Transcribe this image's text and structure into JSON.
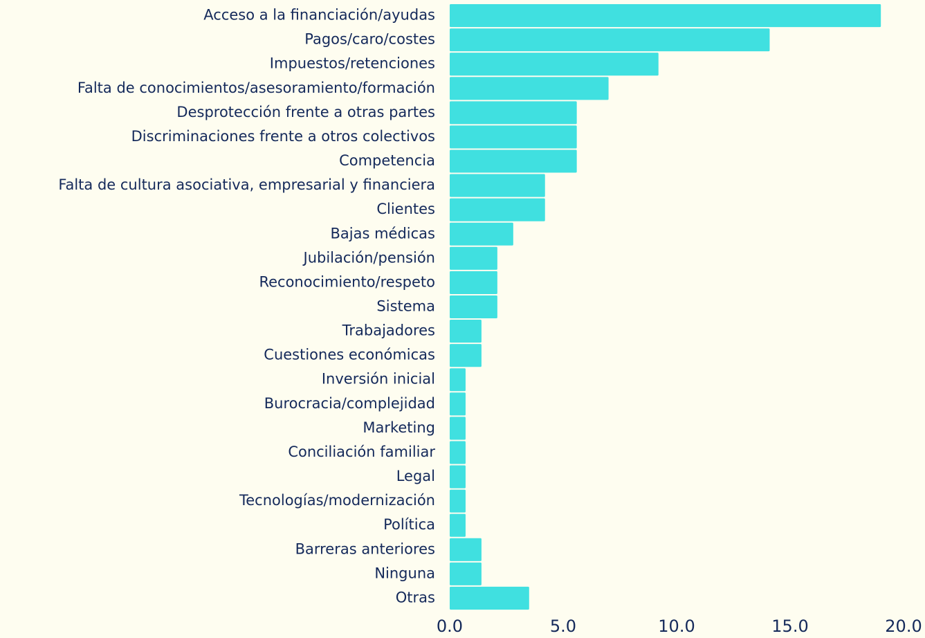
{
  "chart_data": {
    "type": "bar",
    "orientation": "horizontal",
    "categories": [
      "Acceso a la financiación/ayudas",
      "Pagos/caro/costes",
      "Impuestos/retenciones",
      "Falta de conocimientos/asesoramiento/formación",
      "Desprotección frente a otras partes",
      "Discriminaciones frente a otros colectivos",
      "Competencia",
      "Falta de cultura asociativa, empresarial y financiera",
      "Clientes",
      "Bajas médicas",
      "Jubilación/pensión",
      "Reconocimiento/respeto",
      "Sistema",
      "Trabajadores",
      "Cuestiones económicas",
      "Inversión inicial",
      "Burocracia/complejidad",
      "Marketing",
      "Conciliación familiar",
      "Legal",
      "Tecnologías/modernización",
      "Política",
      "Barreras anteriores",
      "Ninguna",
      "Otras"
    ],
    "values": [
      19.0,
      14.1,
      9.2,
      7.0,
      5.6,
      5.6,
      5.6,
      4.2,
      4.2,
      2.8,
      2.1,
      2.1,
      2.1,
      1.4,
      1.4,
      0.7,
      0.7,
      0.7,
      0.7,
      0.7,
      0.7,
      0.7,
      1.4,
      1.4,
      3.5
    ],
    "color": "#40e0e0",
    "xlim": [
      0,
      20
    ],
    "xticks": [
      {
        "value": 0,
        "label": "0.0"
      },
      {
        "value": 5,
        "label": "5.0"
      },
      {
        "value": 10,
        "label": "10.0"
      },
      {
        "value": 15,
        "label": "15.0"
      },
      {
        "value": 20,
        "label": "20.0"
      }
    ],
    "grid": false
  }
}
